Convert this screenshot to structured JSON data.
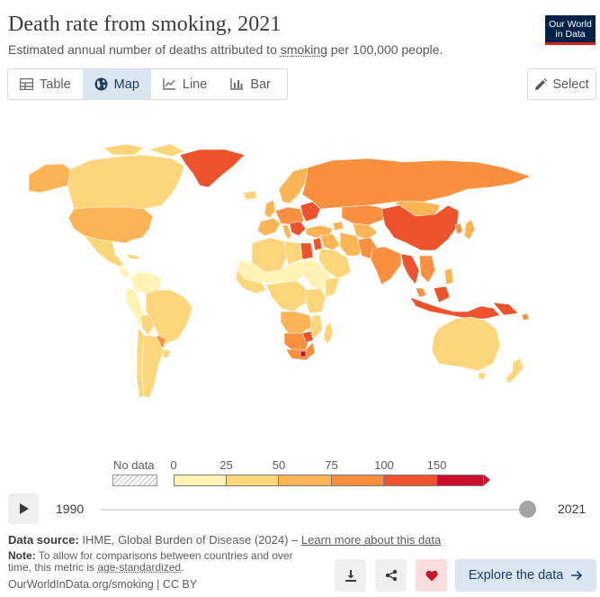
{
  "header": {
    "title": "Death rate from smoking, 2021",
    "subtitle_pre": "Estimated annual number of deaths attributed to ",
    "subtitle_link": "smoking",
    "subtitle_post": " per 100,000 people.",
    "logo_line1": "Our World",
    "logo_line2": "in Data"
  },
  "tabs": [
    {
      "label": "Table",
      "icon": "table-icon",
      "active": false
    },
    {
      "label": "Map",
      "icon": "globe-icon",
      "active": true
    },
    {
      "label": "Line",
      "icon": "line-chart-icon",
      "active": false
    },
    {
      "label": "Bar",
      "icon": "bar-chart-icon",
      "active": false
    }
  ],
  "select_label": "Select",
  "legend": {
    "no_data_label": "No data",
    "tick_labels": [
      "0",
      "25",
      "50",
      "75",
      "100",
      "150"
    ],
    "colors": [
      "#fff2b3",
      "#fdd57a",
      "#fcb455",
      "#f8903f",
      "#ec532d",
      "#c8102e"
    ]
  },
  "timeline": {
    "start_year": "1990",
    "end_year": "2021",
    "position": 1.0
  },
  "footer": {
    "source_label": "Data source:",
    "source_text": " IHME, Global Burden of Disease (2024) – ",
    "source_link": "Learn more about this data",
    "note_label": "Note:",
    "note_text": " To allow for comparisons between countries and over time, this metric is ",
    "note_link": "age-standardized",
    "note_end": ".",
    "url": "OurWorldInData.org/smoking | CC BY",
    "explore_label": "Explore the data"
  },
  "colors": {
    "very_low": "#fff2b3",
    "low": "#fdd57a",
    "mid": "#fcb455",
    "high": "#f8903f",
    "very_high": "#ec532d",
    "extreme": "#c8102e",
    "accent": "#1d3d63"
  }
}
